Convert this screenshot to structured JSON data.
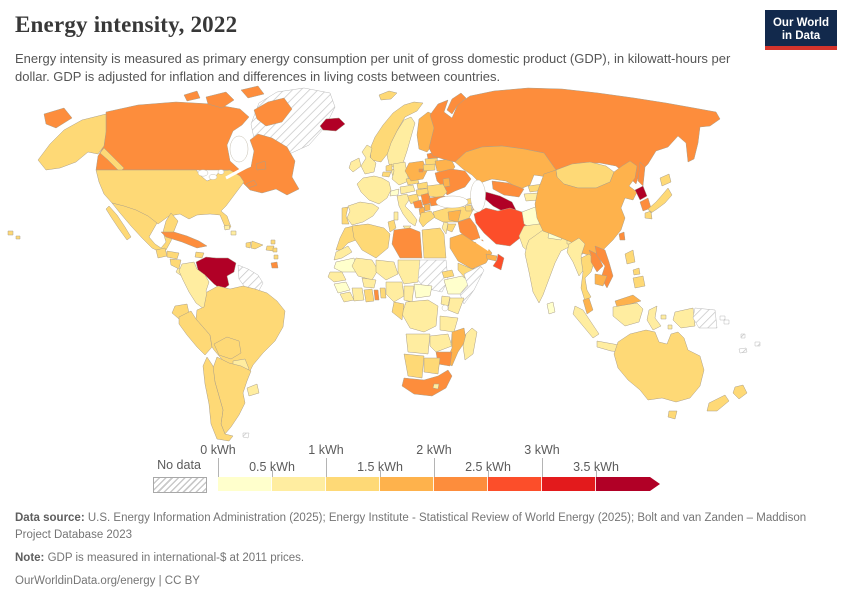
{
  "header": {
    "title": "Energy intensity, 2022",
    "subtitle": "Energy intensity is measured as primary energy consumption per unit of gross domestic product (GDP), in kilowatt-hours per dollar. GDP is adjusted for inflation and differences in living costs between countries.",
    "logo": {
      "line1": "Our World",
      "line2": "in Data",
      "bg_color": "#12294C",
      "accent_color": "#D4342C"
    }
  },
  "legend": {
    "no_data_label": "No data",
    "ticks_top": [
      "0 kWh",
      "1 kWh",
      "2 kWh",
      "3 kWh"
    ],
    "ticks_bottom": [
      "0.5 kWh",
      "1.5 kWh",
      "2.5 kWh",
      "3.5 kWh"
    ]
  },
  "footer": {
    "data_source_label": "Data source:",
    "data_source_text": " U.S. Energy Information Administration (2025); Energy Institute - Statistical Review of World Energy (2025); Bolt and van Zanden – Maddison Project Database 2023",
    "note_label": "Note:",
    "note_text": " GDP is measured in international-$ at 2011 prices.",
    "credit": "OurWorldinData.org/energy | CC BY"
  },
  "chart_data": {
    "type": "choropleth",
    "title": "Energy intensity, 2022",
    "unit": "kilowatt-hours per international-$",
    "year": 2022,
    "legend_position": "bottom",
    "no_data_style": "hatched",
    "bins": [
      {
        "range": "0–0.5 kWh",
        "color": "#FFFFCC"
      },
      {
        "range": "0.5–1 kWh",
        "color": "#FFEDA0"
      },
      {
        "range": "1–1.5 kWh",
        "color": "#FED976"
      },
      {
        "range": "1.5–2 kWh",
        "color": "#FEB24C"
      },
      {
        "range": "2–2.5 kWh",
        "color": "#FD8D3C"
      },
      {
        "range": "2.5–3 kWh",
        "color": "#FC4E2A"
      },
      {
        "range": "3–3.5 kWh",
        "color": "#E31A1C"
      },
      {
        "range": "3.5+ kWh",
        "color": "#B10026"
      }
    ],
    "countries": {
      "United States": "#FED976",
      "Canada": "#FD8D3C",
      "Greenland": "hatch",
      "Mexico": "#FED976",
      "Guatemala": "#FED976",
      "Honduras": "#FED976",
      "Nicaragua": "#FED976",
      "Costa Rica": "#FFEDA0",
      "Panama": "#FFEDA0",
      "Cuba": "#FD8D3C",
      "Jamaica": "#FED976",
      "Haiti": "#FED976",
      "Dominican Republic": "#FED976",
      "Puerto Rico": "#FED976",
      "Bahamas": "#FFEDA0",
      "Lesser Antilles": "#FED976",
      "Trinidad and Tobago": "#FD8D3C",
      "Venezuela": "#B10026",
      "Colombia": "#FFEDA0",
      "Guyana": "hatch",
      "Ecuador": "#FED976",
      "Peru": "#FED976",
      "Brazil": "#FED976",
      "Bolivia": "#FED976",
      "Paraguay": "#FFEDA0",
      "Uruguay": "#FFEDA0",
      "Argentina": "#FED976",
      "Chile": "#FED976",
      "Falkland Islands": "hatch",
      "Iceland": "#B10026",
      "Norway": "#FED976",
      "Sweden": "#FFEDA0",
      "Finland": "#FEB24C",
      "Denmark": "#FFEDA0",
      "United Kingdom": "#FFEDA0",
      "Ireland": "#FFEDA0",
      "Netherlands": "#FED976",
      "Belgium": "#FED976",
      "Germany": "#FFEDA0",
      "France": "#FFEDA0",
      "Switzerland": "#FFFFCC",
      "Austria": "#FFEDA0",
      "Czechia": "#FED976",
      "Slovakia": "#FED976",
      "Poland": "#FEB24C",
      "Hungary": "#FED976",
      "Croatia": "#FED976",
      "Bosnia and Herzegovina": "#FD8D3C",
      "Serbia": "#FD8D3C",
      "Albania": "#FEB24C",
      "North Macedonia": "#FEB24C",
      "Greece": "#FED976",
      "Italy": "#FFEDA0",
      "Spain": "#FFEDA0",
      "Portugal": "#FED976",
      "Estonia": "#FD8D3C",
      "Latvia": "#FED976",
      "Lithuania": "#FED976",
      "Belarus": "#FEB24C",
      "Ukraine": "#FD8D3C",
      "Moldova": "#FEB24C",
      "Romania": "#FED976",
      "Bulgaria": "#FD8D3C",
      "Turkey": "#FED976",
      "Cyprus": "#FFEDA0",
      "Georgia": "#FED976",
      "Armenia": "#FED976",
      "Azerbaijan": "#FEB24C",
      "Russia": "#FD8D3C",
      "Kazakhstan": "#FEB24C",
      "Uzbekistan": "#FD8D3C",
      "Turkmenistan": "#B10026",
      "Kyrgyzstan": "#FED976",
      "Tajikistan": "#FFEDA0",
      "Syria": "#FEB24C",
      "Israel": "#FFEDA0",
      "Jordan": "#FED976",
      "Iraq": "#FD8D3C",
      "Iran": "#FC4E2A",
      "Kuwait": "#FD8D3C",
      "Saudi Arabia": "#FEB24C",
      "United Arab Emirates": "#FEB24C",
      "Oman": "#FC4E2A",
      "Yemen": "#FED976",
      "Afghanistan": "#FFFFCC",
      "Pakistan": "#FFEDA0",
      "India": "#FFEDA0",
      "Nepal": "#FFFFCC",
      "Bhutan": "#FFEDA0",
      "Bangladesh": "#FFEDA0",
      "Sri Lanka": "#FFFFCC",
      "Mongolia": "#FED976",
      "China": "#FEB24C",
      "North Korea": "#B10026",
      "South Korea": "#FD8D3C",
      "Japan": "#FED976",
      "Taiwan": "#FD8D3C",
      "Myanmar": "#FFEDA0",
      "Thailand": "#FED976",
      "Laos": "#FD8D3C",
      "Vietnam": "#FD8D3C",
      "Cambodia": "#FEB24C",
      "Malaysia": "#FEB24C",
      "Indonesia": "#FFEDA0",
      "Philippines": "#FED976",
      "Papua New Guinea": "hatch",
      "Solomon Islands": "hatch",
      "Vanuatu": "hatch",
      "New Caledonia": "hatch",
      "Fiji": "hatch",
      "Australia": "#FED976",
      "New Zealand": "#FED976",
      "Morocco": "#FED976",
      "Western Sahara": "#FFEDA0",
      "Algeria": "#FED976",
      "Tunisia": "#FED976",
      "Libya": "#FD8D3C",
      "Egypt": "#FED976",
      "Mauritania": "#FFFFCC",
      "Mali": "#FFEDA0",
      "Niger": "#FFEDA0",
      "Chad": "#FFEDA0",
      "Sudan": "hatch",
      "Senegal": "#FFEDA0",
      "Guinea": "#FFFFCC",
      "Sierra Leone": "#FFEDA0",
      "Ivory Coast": "#FFEDA0",
      "Ghana": "#FED976",
      "Togo": "#FD8D3C",
      "Benin": "#FED976",
      "Burkina Faso": "#FFEDA0",
      "Nigeria": "#FFEDA0",
      "Cameroon": "#FFEDA0",
      "Central African Republic": "#FFFFCC",
      "Eritrea": "#FED976",
      "Ethiopia": "#FFFFCC",
      "Somalia": "hatch",
      "Kenya": "#FFEDA0",
      "Uganda": "#FFEDA0",
      "Democratic Republic of Congo": "#FFEDA0",
      "Congo": "#FED976",
      "Tanzania": "#FFEDA0",
      "Angola": "#FFEDA0",
      "Zambia": "#FFEDA0",
      "Malawi": "#FFEDA0",
      "Mozambique": "#FEB24C",
      "Zimbabwe": "#FD8D3C",
      "Namibia": "#FED976",
      "Botswana": "#FED976",
      "South Africa": "#FD8D3C",
      "Lesotho": "#FFEDA0",
      "Madagascar": "#FFEDA0"
    }
  }
}
